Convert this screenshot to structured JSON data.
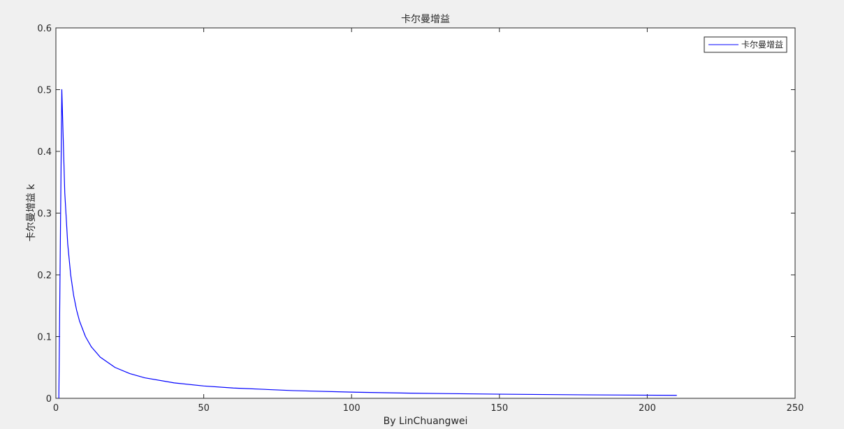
{
  "chart_data": {
    "type": "line",
    "title": "卡尔曼增益",
    "xlabel": "By LinChuangwei",
    "ylabel": "卡尔曼增益 k",
    "xlim": [
      0,
      250
    ],
    "ylim": [
      0,
      0.6
    ],
    "xticks": [
      0,
      50,
      100,
      150,
      200,
      250
    ],
    "yticks": [
      0,
      0.1,
      0.2,
      0.3,
      0.4,
      0.5,
      0.6
    ],
    "xtick_labels": [
      "0",
      "50",
      "100",
      "150",
      "200",
      "250"
    ],
    "ytick_labels": [
      "0",
      "0.1",
      "0.2",
      "0.3",
      "0.4",
      "0.5",
      "0.6"
    ],
    "grid": false,
    "legend_position": "top-right",
    "series": [
      {
        "name": "卡尔曼增益",
        "color": "#0000ff",
        "x": [
          1,
          2,
          3,
          4,
          5,
          6,
          7,
          8,
          10,
          12,
          15,
          20,
          25,
          30,
          40,
          50,
          60,
          80,
          100,
          120,
          150,
          180,
          210
        ],
        "y": [
          0,
          0.5,
          0.333,
          0.25,
          0.2,
          0.1667,
          0.1429,
          0.125,
          0.1,
          0.0833,
          0.0667,
          0.05,
          0.04,
          0.0333,
          0.025,
          0.02,
          0.0167,
          0.0125,
          0.01,
          0.0083,
          0.0067,
          0.0056,
          0.0048
        ]
      }
    ]
  }
}
